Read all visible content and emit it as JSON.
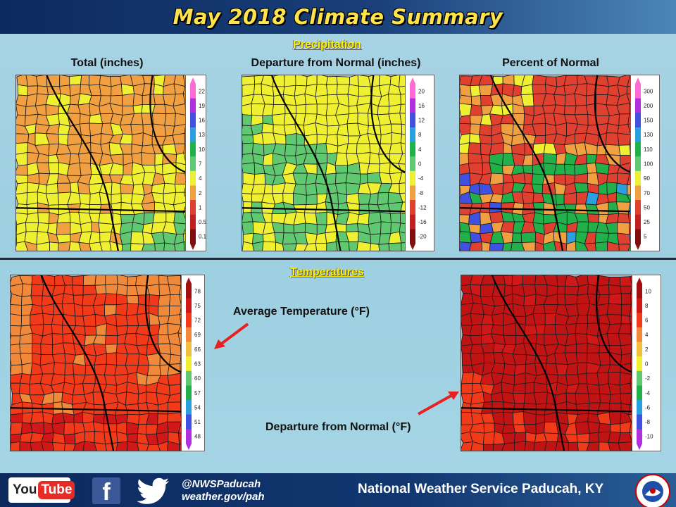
{
  "title": "May 2018 Climate Summary",
  "precipitation": {
    "section_title": "Precipitation",
    "panels": [
      {
        "title": "Total (inches)",
        "legend": [
          "22",
          "19",
          "16",
          "13",
          "10",
          "7",
          "4",
          "2",
          "1",
          "0.5",
          "0.1"
        ],
        "colors": [
          "#ff6ad5",
          "#b030e0",
          "#4050e0",
          "#2aa0e0",
          "#22b04a",
          "#60c870",
          "#f0f032",
          "#f0a040",
          "#e04030",
          "#c02020",
          "#801010"
        ]
      },
      {
        "title": "Departure from Normal (inches)",
        "legend": [
          "20",
          "16",
          "12",
          "8",
          "4",
          "0",
          "-4",
          "-8",
          "-12",
          "-16",
          "-20"
        ],
        "colors": [
          "#ff6ad5",
          "#b030e0",
          "#4050e0",
          "#2aa0e0",
          "#22b04a",
          "#60c870",
          "#f0f032",
          "#f0a040",
          "#e04030",
          "#c02020",
          "#801010"
        ]
      },
      {
        "title": "Percent of Normal",
        "legend": [
          "300",
          "200",
          "150",
          "130",
          "110",
          "100",
          "90",
          "70",
          "50",
          "25",
          "5"
        ],
        "colors": [
          "#ff6ad5",
          "#b030e0",
          "#4050e0",
          "#2aa0e0",
          "#22b04a",
          "#60c870",
          "#f0f032",
          "#f0a040",
          "#e04030",
          "#c02020",
          "#801010"
        ]
      }
    ]
  },
  "temperatures": {
    "section_title": "Temperatures",
    "panels": [
      {
        "legend": [
          "78",
          "75",
          "72",
          "69",
          "66",
          "63",
          "60",
          "57",
          "54",
          "51",
          "48"
        ],
        "colors": [
          "#a01010",
          "#d01818",
          "#f03a1a",
          "#f08a3a",
          "#f0c040",
          "#f0f032",
          "#60c870",
          "#22b04a",
          "#2aa0e0",
          "#4050e0",
          "#b030e0"
        ]
      },
      {
        "legend": [
          "10",
          "8",
          "6",
          "4",
          "2",
          "0",
          "-2",
          "-4",
          "-6",
          "-8",
          "-10"
        ],
        "colors": [
          "#a01010",
          "#d01818",
          "#f03a1a",
          "#f08a3a",
          "#f0c040",
          "#f0f032",
          "#60c870",
          "#22b04a",
          "#2aa0e0",
          "#4050e0",
          "#b030e0"
        ]
      }
    ],
    "annotation_avg": "Average Temperature (°F)",
    "annotation_dep": "Departure from Normal (°F)"
  },
  "footer": {
    "youtube_you": "You",
    "youtube_tube": "Tube",
    "facebook_glyph": "f",
    "handle": "@NWSPaducah",
    "website": "weather.gov/pah",
    "office": "National Weather Service Paducah, KY"
  },
  "icons": {
    "youtube": "youtube-icon",
    "facebook": "facebook-icon",
    "twitter": "twitter-icon",
    "seal": "nws-seal-icon"
  }
}
